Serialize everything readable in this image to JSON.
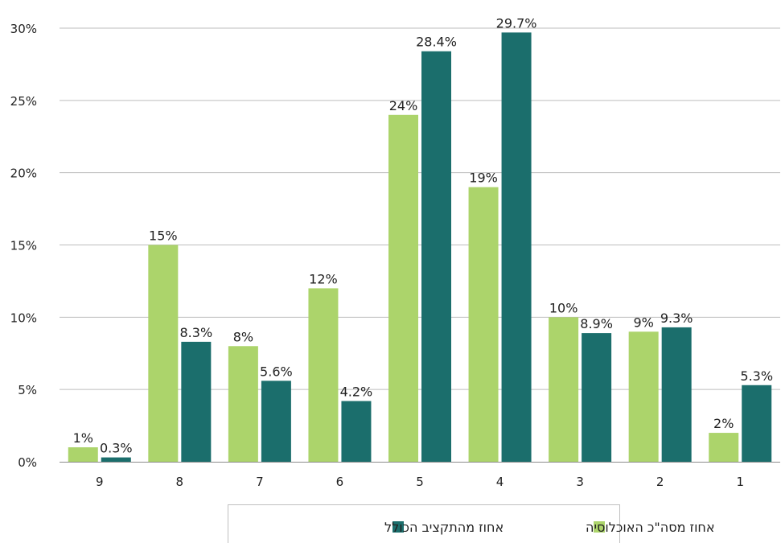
{
  "chart_data": {
    "type": "bar",
    "categories": [
      "9",
      "8",
      "7",
      "6",
      "5",
      "4",
      "3",
      "2",
      "1"
    ],
    "series": [
      {
        "name": "אחוז מסה\"כ האוכלוסיה",
        "color": "#acd46b",
        "values": [
          1,
          15,
          8,
          12,
          24,
          19,
          10,
          9,
          2
        ],
        "labels": [
          "1%",
          "15%",
          "8%",
          "12%",
          "24%",
          "19%",
          "10%",
          "9%",
          "2%"
        ]
      },
      {
        "name": "אחוז מהתקציב הכולל",
        "color": "#1b6e6c",
        "values": [
          0.3,
          8.3,
          5.6,
          4.2,
          28.4,
          29.7,
          8.9,
          9.3,
          5.3
        ],
        "labels": [
          "0.3%",
          "8.3%",
          "5.6%",
          "4.2%",
          "28.4%",
          "29.7%",
          "8.9%",
          "9.3%",
          "5.3%"
        ]
      }
    ],
    "y_ticks": [
      0,
      5,
      10,
      15,
      20,
      25,
      30
    ],
    "y_tick_labels": [
      "0%",
      "5%",
      "10%",
      "15%",
      "20%",
      "25%",
      "30%"
    ],
    "ylim": [
      0,
      30
    ],
    "grid": true,
    "legend_position": "bottom-center"
  }
}
